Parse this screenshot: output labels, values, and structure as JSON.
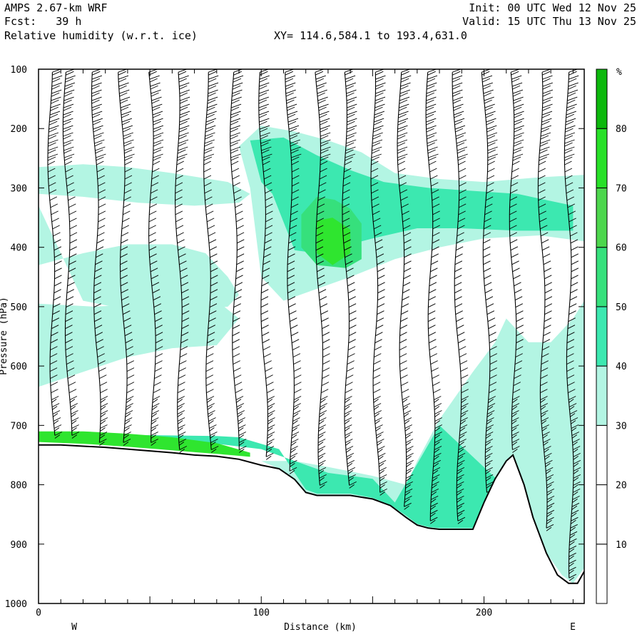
{
  "header": {
    "model": "AMPS 2.67-km WRF",
    "fcst": "Fcst:   39 h",
    "field": "Relative humidity (w.r.t. ice)",
    "init": "Init: 00 UTC Wed 12 Nov 25",
    "valid": "Valid: 15 UTC Thu 13 Nov 25",
    "xy": "XY= 114.6,584.1 to 193.4,631.0"
  },
  "chart_data": {
    "type": "heatmap",
    "title": "Relative humidity (w.r.t. ice)",
    "xlabel": "Distance (km)",
    "ylabel": "Pressure (hPa)",
    "xlim": [
      0,
      245
    ],
    "ylim": [
      1000,
      100
    ],
    "x_ticks": [
      0,
      100,
      200
    ],
    "y_ticks": [
      100,
      200,
      300,
      400,
      500,
      600,
      700,
      800,
      900,
      1000
    ],
    "x_end_labels": {
      "left": "W",
      "right": "E"
    },
    "colorbar": {
      "unit": "%",
      "levels": [
        10,
        20,
        30,
        40,
        50,
        60,
        70,
        80
      ],
      "colors": [
        "#ffffff",
        "#ffffff",
        "#ffffff",
        "#b3f5e3",
        "#3ce8b0",
        "#36e07c",
        "#4dd64d",
        "#28e028",
        "#0db80d"
      ]
    },
    "colors": {
      "rh30": "#b3f5e3",
      "rh40": "#3ce8b0",
      "rh50": "#36e07c",
      "rh60": "#2fe52f",
      "rh70": "#0db80d",
      "terrain": "#000000"
    },
    "terrain_profile": {
      "distance_km": [
        0,
        10,
        20,
        30,
        40,
        50,
        60,
        70,
        80,
        90,
        100,
        108,
        115,
        120,
        125,
        130,
        140,
        150,
        158,
        165,
        170,
        175,
        180,
        187,
        195,
        200,
        205,
        210,
        213,
        218,
        222,
        228,
        233,
        238,
        242,
        245
      ],
      "pressure_hpa": [
        733,
        733,
        735,
        737,
        740,
        743,
        746,
        750,
        752,
        757,
        767,
        773,
        791,
        813,
        818,
        818,
        818,
        824,
        835,
        855,
        868,
        873,
        875,
        875,
        875,
        830,
        790,
        760,
        750,
        800,
        855,
        915,
        952,
        966,
        966,
        946
      ]
    },
    "rh_regions": [
      {
        "level": 30,
        "distance_km": [
          0,
          20,
          40,
          60,
          85,
          90,
          95,
          90,
          70,
          45,
          20,
          0
        ],
        "pressure_hpa": [
          265,
          260,
          265,
          275,
          290,
          300,
          310,
          325,
          330,
          325,
          315,
          310
        ]
      },
      {
        "level": 30,
        "distance_km": [
          0,
          0,
          20,
          40,
          60,
          75,
          85,
          90,
          85,
          60,
          40,
          20
        ],
        "pressure_hpa": [
          330,
          430,
          410,
          395,
          395,
          410,
          450,
          480,
          500,
          510,
          505,
          490
        ]
      },
      {
        "level": 30,
        "distance_km": [
          0,
          25,
          50,
          70,
          80,
          90,
          80,
          60,
          40,
          20,
          0
        ],
        "pressure_hpa": [
          495,
          500,
          495,
          490,
          490,
          520,
          565,
          570,
          585,
          610,
          635
        ]
      },
      {
        "level": 30,
        "distance_km": [
          90,
          100,
          115,
          130,
          145,
          160,
          180,
          200,
          225,
          245,
          245,
          225,
          200,
          180,
          160,
          140,
          125,
          110,
          100,
          95
        ],
        "pressure_hpa": [
          230,
          195,
          205,
          220,
          240,
          275,
          285,
          290,
          282,
          278,
          390,
          380,
          385,
          400,
          420,
          450,
          470,
          490,
          450,
          300
        ]
      },
      {
        "level": 40,
        "distance_km": [
          95,
          110,
          125,
          140,
          155,
          175,
          195,
          215,
          240,
          240,
          215,
          190,
          170,
          150,
          140,
          125,
          115,
          105,
          100
        ],
        "pressure_hpa": [
          220,
          215,
          245,
          270,
          290,
          300,
          305,
          310,
          330,
          372,
          372,
          368,
          368,
          385,
          395,
          410,
          405,
          310,
          290
        ]
      },
      {
        "level": 50,
        "distance_km": [
          118,
          125,
          133,
          140,
          145,
          145,
          138,
          125,
          118
        ],
        "pressure_hpa": [
          345,
          315,
          320,
          335,
          360,
          420,
          435,
          430,
          400
        ]
      },
      {
        "level": 60,
        "distance_km": [
          125,
          132,
          140,
          140,
          132,
          125
        ],
        "pressure_hpa": [
          355,
          350,
          370,
          410,
          430,
          410
        ]
      },
      {
        "level": 30,
        "distance_km": [
          100,
          115,
          130,
          150,
          160,
          165,
          170,
          180,
          195,
          205,
          210,
          215,
          220,
          230,
          240,
          245,
          245,
          240,
          235,
          228,
          222,
          218,
          213,
          210,
          205,
          200,
          195,
          187,
          180,
          175,
          170,
          165,
          158,
          150,
          140,
          130,
          125,
          120,
          115,
          108
        ],
        "pressure_hpa": [
          760,
          760,
          770,
          785,
          795,
          800,
          760,
          690,
          610,
          560,
          520,
          540,
          560,
          560,
          520,
          490,
          940,
          966,
          952,
          915,
          855,
          800,
          750,
          760,
          790,
          830,
          875,
          875,
          875,
          873,
          868,
          855,
          835,
          824,
          818,
          818,
          818,
          813,
          791,
          773
        ]
      },
      {
        "level": 40,
        "distance_km": [
          0,
          40,
          80,
          90,
          108,
          115,
          120,
          125,
          130,
          140,
          150,
          158,
          165,
          170,
          175,
          180,
          187,
          195,
          200,
          205,
          180,
          160,
          150,
          130,
          100,
          80,
          40,
          0
        ],
        "pressure_hpa": [
          716,
          716,
          718,
          720,
          740,
          780,
          808,
          815,
          815,
          815,
          822,
          834,
          852,
          866,
          871,
          873,
          873,
          873,
          828,
          788,
          700,
          830,
          790,
          780,
          740,
          731,
          722,
          722
        ]
      },
      {
        "level": 60,
        "distance_km": [
          0,
          20,
          40,
          60,
          80,
          95,
          95,
          80,
          60,
          40,
          20,
          0
        ],
        "pressure_hpa": [
          710,
          710,
          714,
          720,
          730,
          746,
          753,
          748,
          742,
          736,
          731,
          728
        ]
      }
    ],
    "wind_barbs": {
      "profile_distance_km": [
        5,
        12,
        25,
        37,
        50,
        62,
        75,
        87,
        100,
        112,
        125,
        137,
        150,
        162,
        175,
        187,
        200,
        212,
        225,
        237
      ],
      "note": "wind barbs drawn at each profile column from 100 hPa down to the terrain"
    }
  }
}
